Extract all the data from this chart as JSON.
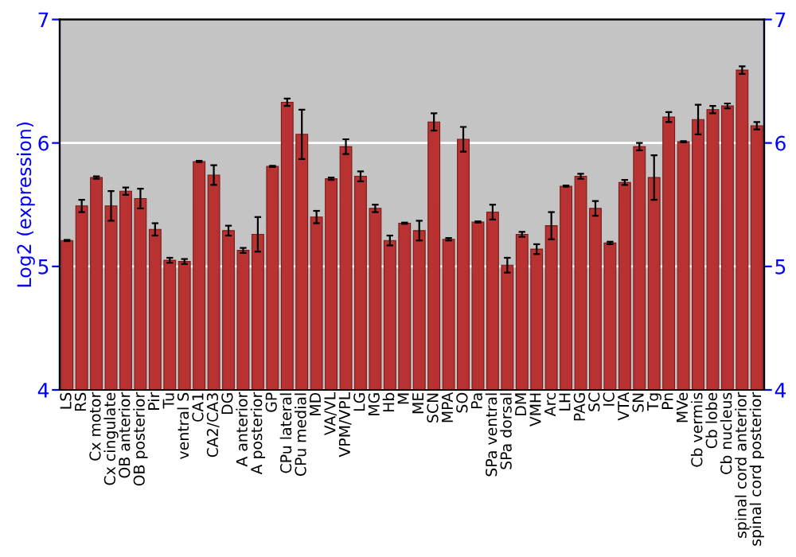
{
  "chart_data": {
    "type": "bar",
    "ylabel": "Log2 (expression)",
    "categories": [
      "LS",
      "RS",
      "Cx motor",
      "Cx cingulate",
      "OB anterior",
      "OB posterior",
      "Pir",
      "Tu",
      "ventral S",
      "CA1",
      "CA2/CA3",
      "DG",
      "A anterior",
      "A posterior",
      "GP",
      "CPu lateral",
      "CPu medial",
      "MD",
      "VA/VL",
      "VPM/VPL",
      "LG",
      "MG",
      "Hb",
      "M",
      "ME",
      "SCN",
      "MPA",
      "SO",
      "Pa",
      "SPa ventral",
      "SPa dorsal",
      "DM",
      "VMH",
      "Arc",
      "LH",
      "PAG",
      "SC",
      "IC",
      "VTA",
      "SN",
      "Tg",
      "Pn",
      "MVe",
      "Cb vermis",
      "Cb lobe",
      "Cb nucleus",
      "spinal cord anterior",
      "spinal cord posterior"
    ],
    "values": [
      5.21,
      5.49,
      5.72,
      5.49,
      5.61,
      5.55,
      5.3,
      5.05,
      5.04,
      5.85,
      5.74,
      5.29,
      5.13,
      5.26,
      5.81,
      6.33,
      6.07,
      5.4,
      5.71,
      5.97,
      5.73,
      5.47,
      5.21,
      5.35,
      5.29,
      6.17,
      5.22,
      6.03,
      5.36,
      5.44,
      5.01,
      5.26,
      5.14,
      5.33,
      5.65,
      5.73,
      5.47,
      5.19,
      5.68,
      5.97,
      5.72,
      6.21,
      6.01,
      6.19,
      6.27,
      6.3,
      6.59,
      6.14
    ],
    "errors": [
      0.005,
      0.05,
      0.01,
      0.12,
      0.03,
      0.08,
      0.05,
      0.02,
      0.02,
      0.005,
      0.08,
      0.04,
      0.02,
      0.14,
      0.005,
      0.03,
      0.2,
      0.05,
      0.01,
      0.06,
      0.04,
      0.03,
      0.04,
      0.005,
      0.08,
      0.07,
      0.01,
      0.1,
      0.005,
      0.06,
      0.06,
      0.02,
      0.04,
      0.11,
      0.005,
      0.02,
      0.06,
      0.01,
      0.02,
      0.03,
      0.18,
      0.04,
      0.005,
      0.12,
      0.03,
      0.02,
      0.03,
      0.03
    ],
    "color": "#b83232",
    "ylim": [
      4,
      7
    ],
    "yticks": [
      4,
      5,
      6,
      7
    ],
    "y2lim": [
      4,
      7
    ],
    "y2ticks": [
      4,
      5,
      6,
      7
    ],
    "grid": "y"
  }
}
